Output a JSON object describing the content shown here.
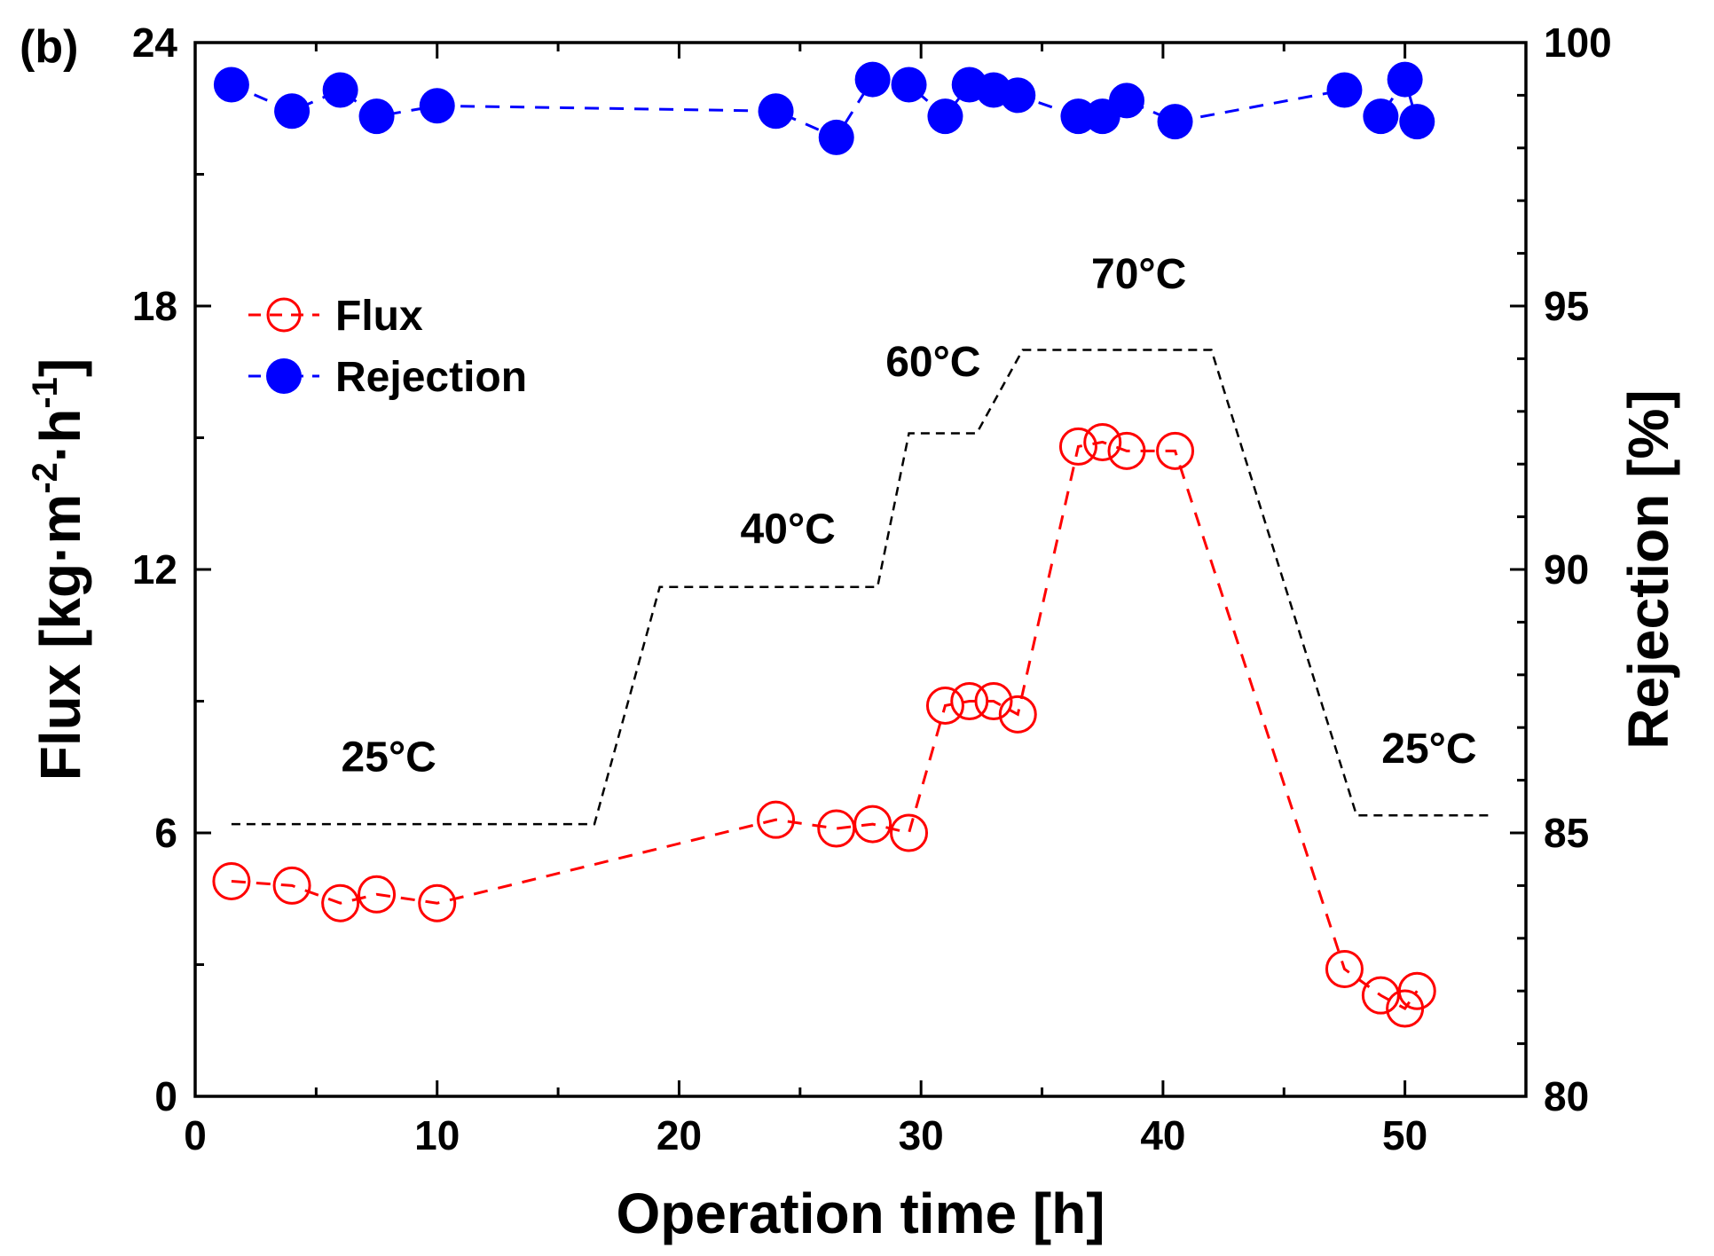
{
  "chart_data": {
    "type": "scatter",
    "panel_label": "(b)",
    "xlabel": "Operation time [h]",
    "ylabel_left": "Flux [kg·m⁻²·h⁻¹]",
    "ylabel_left_parts": [
      "Flux [kg·m",
      "-2",
      "·h",
      "-1",
      "]"
    ],
    "ylabel_right": "Rejection [%]",
    "xlim": [
      0,
      55
    ],
    "ylim_left": [
      0,
      24
    ],
    "ylim_right": [
      80,
      100
    ],
    "xticks": [
      0,
      10,
      20,
      30,
      40,
      50
    ],
    "yticks_left": [
      0,
      6,
      12,
      18,
      24
    ],
    "yticks_right": [
      80,
      85,
      90,
      95,
      100
    ],
    "xtick_labels": [
      "0",
      "10",
      "20",
      "30",
      "40",
      "50"
    ],
    "ytick_labels_left": [
      "0",
      "6",
      "12",
      "18",
      "24"
    ],
    "ytick_labels_right": [
      "80",
      "85",
      "90",
      "95",
      "100"
    ],
    "legend": {
      "placement": "upper-left",
      "entries": [
        "Flux",
        "Rejection"
      ]
    },
    "series": [
      {
        "name": "Flux",
        "axis": "left",
        "marker": "open-circle",
        "color": "#ff0000",
        "x": [
          1.5,
          4,
          6,
          7.5,
          10,
          24,
          26.5,
          28,
          29.5,
          31,
          32,
          33,
          34,
          36.5,
          37.5,
          38.5,
          40.5,
          47.5,
          49,
          50,
          50.5
        ],
        "y": [
          4.9,
          4.8,
          4.4,
          4.6,
          4.4,
          6.3,
          6.1,
          6.2,
          6.0,
          8.9,
          9.0,
          9.0,
          8.7,
          14.8,
          14.9,
          14.7,
          14.7,
          2.9,
          2.3,
          2.0,
          2.4
        ]
      },
      {
        "name": "Rejection",
        "axis": "right",
        "marker": "filled-circle",
        "color": "#0000ff",
        "x": [
          1.5,
          4,
          6,
          7.5,
          10,
          24,
          26.5,
          28,
          29.5,
          31,
          32,
          33,
          34,
          36.5,
          37.5,
          38.5,
          40.5,
          47.5,
          49,
          50,
          50.5
        ],
        "y": [
          99.2,
          98.7,
          99.1,
          98.6,
          98.8,
          98.7,
          98.2,
          99.3,
          99.2,
          98.6,
          99.2,
          99.1,
          99.0,
          98.6,
          98.6,
          98.9,
          98.5,
          99.1,
          98.6,
          99.3,
          98.5
        ]
      }
    ],
    "temperature_profile": {
      "style": "black-dashed",
      "axis": "left",
      "x": [
        1.5,
        16.5,
        19.2,
        28.2,
        29.5,
        32.3,
        34.2,
        42,
        48,
        53.5
      ],
      "y": [
        6.2,
        6.2,
        11.6,
        11.6,
        15.1,
        15.1,
        17.0,
        17.0,
        6.4,
        6.4
      ]
    },
    "annotations": [
      {
        "text": "25°C",
        "x": 8,
        "y": 7.4
      },
      {
        "text": "40°C",
        "x": 24.5,
        "y": 12.6
      },
      {
        "text": "60°C",
        "x": 30.5,
        "y": 16.4
      },
      {
        "text": "70°C",
        "x": 39,
        "y": 18.4
      },
      {
        "text": "25°C",
        "x": 51,
        "y": 7.6
      }
    ]
  }
}
